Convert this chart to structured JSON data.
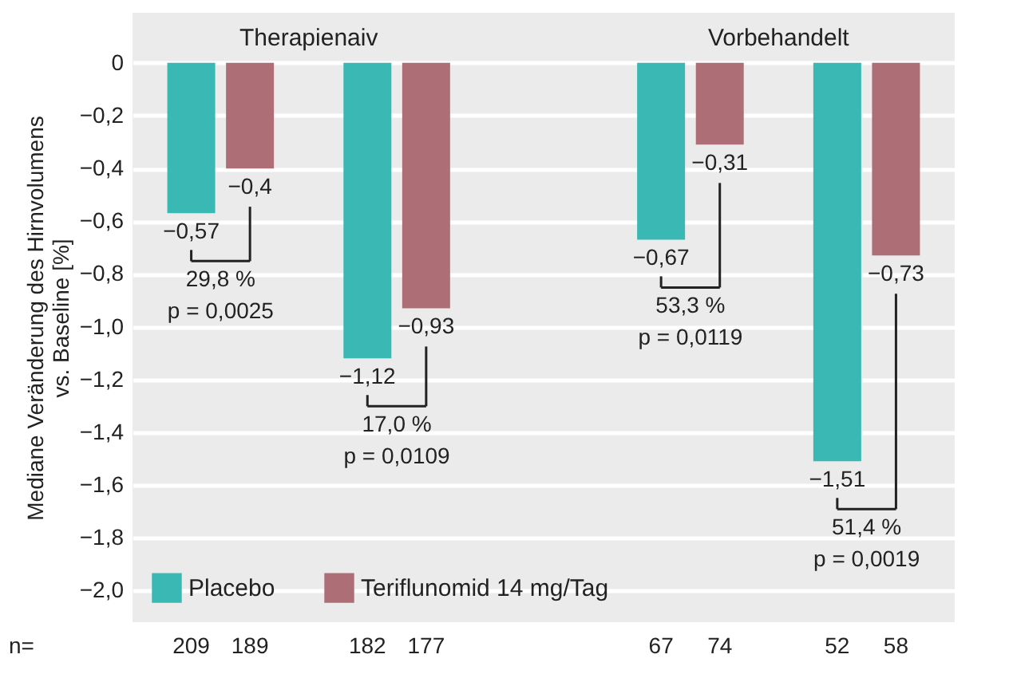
{
  "chart_data": {
    "type": "bar",
    "ylabel": "Mediane Veränderung des Hirnvolumens vs. Baseline [%]",
    "xlabel": "n=",
    "categories": [
      "209",
      "189",
      null,
      "182",
      "177",
      null,
      null,
      null,
      "67",
      "74",
      null,
      "52",
      "58"
    ],
    "series": [
      {
        "name": "Placebo",
        "color": "#3ab8b4",
        "values": [
          -0.57,
          null,
          null,
          -1.12,
          null,
          null,
          null,
          null,
          -0.67,
          null,
          null,
          -1.51,
          null
        ],
        "value_labels": [
          "−0,57",
          null,
          null,
          "−1,12",
          null,
          null,
          null,
          null,
          "−0,67",
          null,
          null,
          "−1,51",
          null
        ]
      },
      {
        "name": "Teriflunomid 14 mg/Tag",
        "color": "#ad6e75",
        "values": [
          null,
          -0.4,
          null,
          null,
          -0.93,
          null,
          null,
          null,
          null,
          -0.31,
          null,
          null,
          -0.73
        ],
        "value_labels": [
          null,
          "−0,4",
          null,
          null,
          "−0,93",
          null,
          null,
          null,
          null,
          "−0,31",
          null,
          null,
          "−0,73"
        ]
      }
    ],
    "ylim": [
      -2.12,
      0.19
    ],
    "yticks": [
      0,
      {
        "value": -0.2,
        "label": "−0,2"
      },
      {
        "value": -0.4,
        "label": "−0,4"
      },
      {
        "value": -0.6,
        "label": "−0,6"
      },
      {
        "value": -0.8,
        "label": "−0,8"
      },
      {
        "value": -1.0,
        "label": "−1,0"
      },
      {
        "value": -1.2,
        "label": "−1,2"
      },
      {
        "value": -1.4,
        "label": "−1,4"
      },
      {
        "value": -1.6,
        "label": "−1,6"
      },
      {
        "value": -1.8,
        "label": "−1,8"
      },
      {
        "value": -2.0,
        "label": "−2,0"
      }
    ],
    "annotations": [
      "Therapienaiv",
      "Vorbehandelt",
      "29,8 %\np = 0,0025",
      "17,0 %\np = 0,0109",
      "53,3 %\np = 0,0119",
      "51,4 %\np = 0,0019"
    ],
    "grid": "y",
    "legend": "bottom left"
  }
}
